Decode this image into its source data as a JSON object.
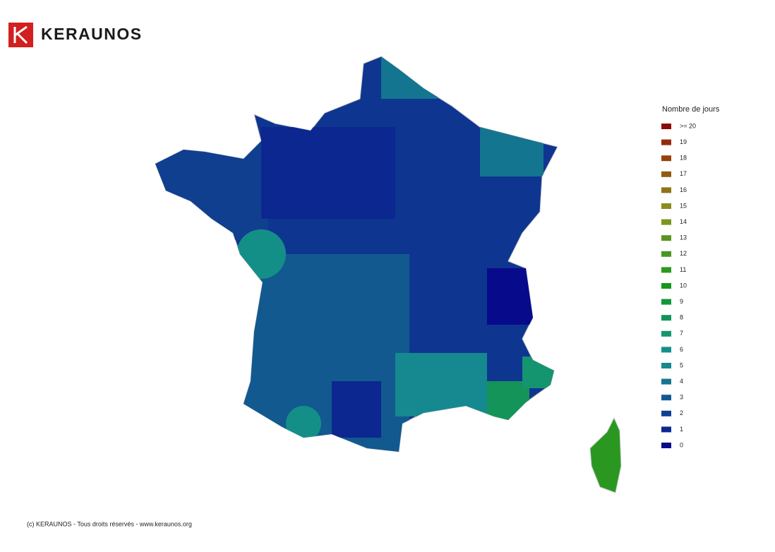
{
  "header": {
    "brand": "KERAUNOS"
  },
  "legend": {
    "title": "Nombre de jours",
    "items": [
      {
        "label": ">= 20",
        "color": "#8b0a0a"
      },
      {
        "label": "19",
        "color": "#962a0c"
      },
      {
        "label": "18",
        "color": "#96420e"
      },
      {
        "label": "17",
        "color": "#935a12"
      },
      {
        "label": "16",
        "color": "#8f7318"
      },
      {
        "label": "15",
        "color": "#8c8c1e"
      },
      {
        "label": "14",
        "color": "#7a961e"
      },
      {
        "label": "13",
        "color": "#5c9420"
      },
      {
        "label": "12",
        "color": "#4a9622"
      },
      {
        "label": "11",
        "color": "#2f9820"
      },
      {
        "label": "10",
        "color": "#17961c"
      },
      {
        "label": "9",
        "color": "#14963c"
      },
      {
        "label": "8",
        "color": "#149458"
      },
      {
        "label": "7",
        "color": "#159470"
      },
      {
        "label": "6",
        "color": "#148f88"
      },
      {
        "label": "5",
        "color": "#15898f"
      },
      {
        "label": "4",
        "color": "#147590"
      },
      {
        "label": "3",
        "color": "#12598f"
      },
      {
        "label": "2",
        "color": "#103f90"
      },
      {
        "label": "1",
        "color": "#0c2790"
      },
      {
        "label": "0",
        "color": "#080a8c"
      }
    ]
  },
  "footer": {
    "text": "(c) KERAUNOS - Tous droits réservés - www.keraunos.org"
  }
}
